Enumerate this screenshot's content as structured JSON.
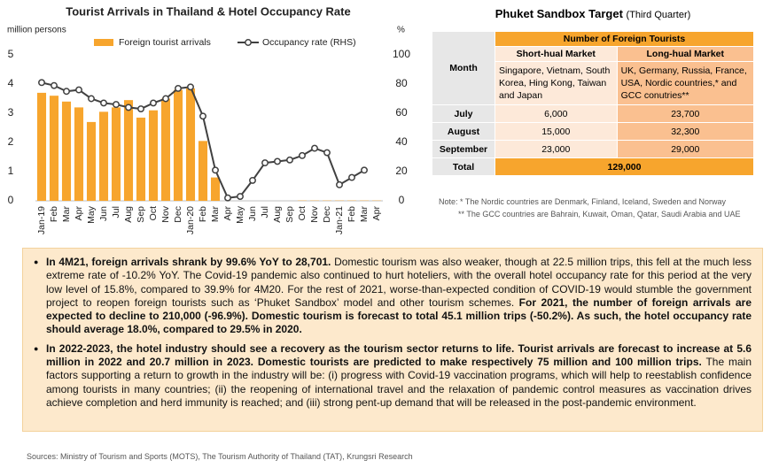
{
  "chart_data": {
    "type": "bar",
    "title": "Tourist Arrivals in Thailand & Hotel Occupancy Rate",
    "y_label": "million persons",
    "y2_label": "%",
    "categories": [
      "Jan-19",
      "Feb",
      "Mar",
      "Apr",
      "May",
      "Jun",
      "Jul",
      "Aug",
      "Sep",
      "Oct",
      "Nov",
      "Dec",
      "Jan-20",
      "Feb",
      "Mar",
      "Apr",
      "May",
      "Jun",
      "Jul",
      "Aug",
      "Sep",
      "Oct",
      "Nov",
      "Dec",
      "Jan-21",
      "Feb",
      "Mar",
      "Apr"
    ],
    "series": [
      {
        "name": "Foreign tourist arrivals",
        "type": "bar",
        "color": "#f7a52d",
        "values": [
          3.7,
          3.6,
          3.4,
          3.2,
          2.7,
          3.05,
          3.2,
          3.45,
          2.85,
          3.1,
          3.5,
          3.8,
          3.85,
          2.05,
          0.8,
          0,
          0,
          0,
          0,
          0,
          0,
          0.01,
          0.01,
          0.01,
          0.01,
          0.01,
          0.01,
          0.01
        ]
      },
      {
        "name": "Occupancy rate (RHS)",
        "type": "line",
        "axis": "y2",
        "color": "#404040",
        "values": [
          81,
          79,
          75,
          76,
          70,
          67,
          66,
          64,
          63,
          67,
          70,
          77,
          78,
          58,
          21,
          2,
          3,
          14,
          26,
          27,
          28,
          31,
          36,
          33,
          11,
          16,
          21,
          null
        ]
      }
    ],
    "ylim": [
      0,
      5
    ],
    "yticks": [
      0,
      1,
      2,
      3,
      4,
      5
    ],
    "y2lim": [
      0,
      100
    ],
    "y2ticks": [
      0,
      20,
      40,
      60,
      80,
      100
    ],
    "legend": "top"
  },
  "table": {
    "title": "Phuket Sandbox Target",
    "subtitle": "(Third Quarter)",
    "month_header": "Month",
    "group_header": "Number of Foreign Tourists",
    "columns": [
      "Short-hual Market",
      "Long-hual Market"
    ],
    "descriptions": [
      "Singapore, Vietnam, South Korea, Hing Kong, Taiwan and Japan",
      "UK, Germany, Russia, France, USA, Nordic countries,* and GCC conutries**"
    ],
    "rows": [
      [
        "July",
        "6,000",
        "23,700"
      ],
      [
        "August",
        "15,000",
        "32,300"
      ],
      [
        "September",
        "23,000",
        "29,000"
      ]
    ],
    "total": [
      "Total",
      "129,000"
    ],
    "notes": [
      "Note: * The Nordic countries are Denmark, Finland, Iceland, Sweden and Norway",
      "** The GCC countries are Bahrain, Kuwait, Oman, Qatar, Saudi Arabia and UAE"
    ]
  },
  "paragraphs": [
    [
      {
        "text": "In 4M21, foreign arrivals shrank by 99.6% YoY to 28,701.",
        "bold": true
      },
      {
        "text": " Domestic tourism was also weaker, though at 22.5 million trips, this fell at the much less extreme rate of -10.2% YoY. The Covid-19 pandemic also continued to hurt hoteliers, with the overall hotel occupancy rate for this period at the very low level of 15.8%, compared to 39.9% for 4M20. For the rest of 2021, worse-than-expected condition of COVID-19 would stumble the government project to reopen foreign tourists such as ‘Phuket Sandbox’ model and other tourism schemes. ",
        "bold": false
      },
      {
        "text": "For 2021, the number of foreign arrivals are expected to decline to 210,000 (-96.9%). Domestic tourism is forecast to total 45.1 million trips (-50.2%). As such, the hotel occupancy rate should average 18.0%, compared to 29.5% in 2020.",
        "bold": true
      }
    ],
    [
      {
        "text": "In 2022-2023, the hotel industry should see a recovery as the tourism sector returns to life. Tourist arrivals are forecast to increase at 5.6 million in 2022 and 20.7 million in 2023. Domestic tourists are predicted to make respectively 75 million and 100 million trips.",
        "bold": true
      },
      {
        "text": " The main factors supporting a return to growth in the industry will be: (i) progress with Covid-19 vaccination programs, which will help to reestablish confidence among tourists in many countries; (ii) the reopening of international travel and the relaxation of pandemic control measures as vaccination drives achieve completion and herd immunity is reached; and (iii) strong pent-up demand that will be released in the post-pandemic environment.",
        "bold": false
      }
    ]
  ],
  "source": "Sources: Ministry of Tourism and Sports (MOTS), The Tourism Authority of Thailand (TAT), Krungsri Research"
}
